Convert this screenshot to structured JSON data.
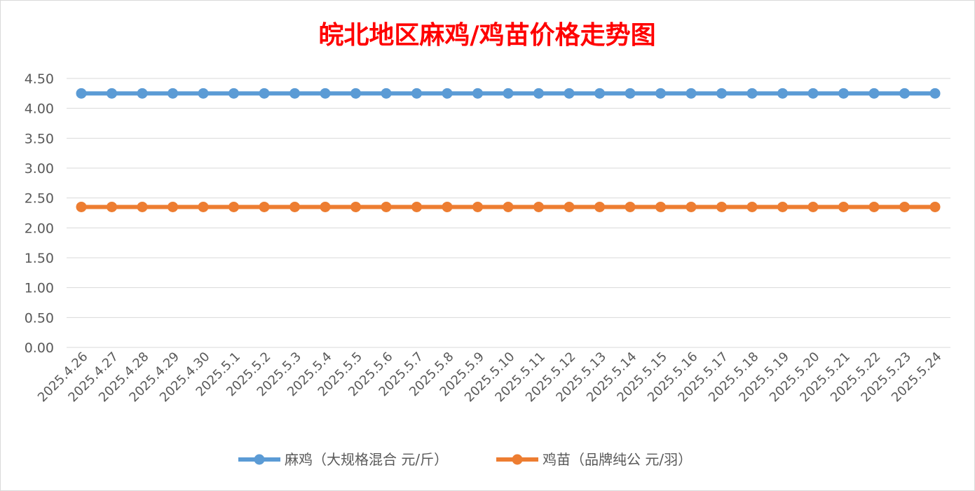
{
  "chart_data": {
    "type": "line",
    "title": "皖北地区麻鸡/鸡苗价格走势图",
    "xlabel": "",
    "ylabel": "",
    "ylim": [
      0,
      4.5
    ],
    "y_ticks": [
      "0.00",
      "0.50",
      "1.00",
      "1.50",
      "2.00",
      "2.50",
      "3.00",
      "3.50",
      "4.00",
      "4.50"
    ],
    "grid": true,
    "legend_position": "bottom",
    "categories": [
      "2025.4.26",
      "2025.4.27",
      "2025.4.28",
      "2025.4.29",
      "2025.4.30",
      "2025.5.1",
      "2025.5.2",
      "2025.5.3",
      "2025.5.4",
      "2025.5.5",
      "2025.5.6",
      "2025.5.7",
      "2025.5.8",
      "2025.5.9",
      "2025.5.10",
      "2025.5.11",
      "2025.5.12",
      "2025.5.13",
      "2025.5.14",
      "2025.5.15",
      "2025.5.16",
      "2025.5.17",
      "2025.5.18",
      "2025.5.19",
      "2025.5.20",
      "2025.5.21",
      "2025.5.22",
      "2025.5.23",
      "2025.5.24"
    ],
    "series": [
      {
        "name": "麻鸡（大规格混合 元/斤）",
        "color": "#5b9bd5",
        "values": [
          4.25,
          4.25,
          4.25,
          4.25,
          4.25,
          4.25,
          4.25,
          4.25,
          4.25,
          4.25,
          4.25,
          4.25,
          4.25,
          4.25,
          4.25,
          4.25,
          4.25,
          4.25,
          4.25,
          4.25,
          4.25,
          4.25,
          4.25,
          4.25,
          4.25,
          4.25,
          4.25,
          4.25,
          4.25
        ]
      },
      {
        "name": "鸡苗（品牌纯公 元/羽）",
        "color": "#ed7d31",
        "values": [
          2.35,
          2.35,
          2.35,
          2.35,
          2.35,
          2.35,
          2.35,
          2.35,
          2.35,
          2.35,
          2.35,
          2.35,
          2.35,
          2.35,
          2.35,
          2.35,
          2.35,
          2.35,
          2.35,
          2.35,
          2.35,
          2.35,
          2.35,
          2.35,
          2.35,
          2.35,
          2.35,
          2.35,
          2.35
        ]
      }
    ]
  }
}
